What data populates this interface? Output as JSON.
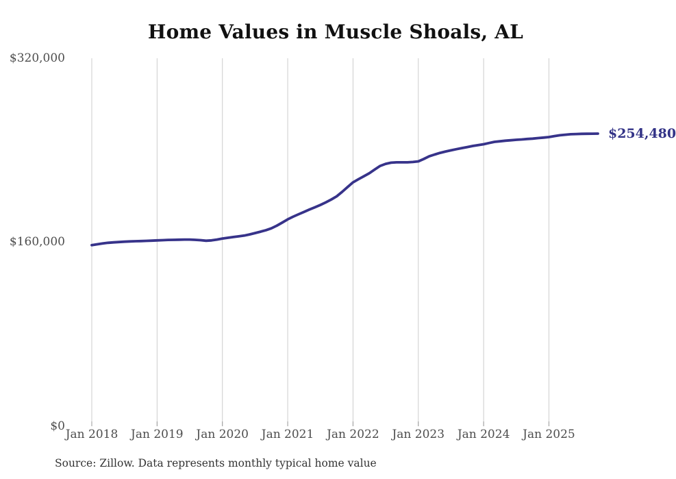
{
  "title": "Home Values in Muscle Shoals, AL",
  "source_note": "Source: Zillow. Data represents monthly typical home value",
  "end_label": "$254,480",
  "colors": {
    "line": "#37338a",
    "end_label": "#333387",
    "grid": "#cccccc",
    "tick": "#999999",
    "axis_text": "#4d4d4d",
    "title_text": "#111111",
    "source_text": "#333333",
    "background": "#ffffff"
  },
  "y_axis": {
    "ticks": [
      {
        "label": "$0",
        "value": 0
      },
      {
        "label": "$160,000",
        "value": 160000
      },
      {
        "label": "$320,000",
        "value": 320000
      }
    ]
  },
  "x_axis": {
    "ticks": [
      {
        "label": "Jan 2018",
        "month_index": 0
      },
      {
        "label": "Jan 2019",
        "month_index": 12
      },
      {
        "label": "Jan 2020",
        "month_index": 24
      },
      {
        "label": "Jan 2021",
        "month_index": 36
      },
      {
        "label": "Jan 2022",
        "month_index": 48
      },
      {
        "label": "Jan 2023",
        "month_index": 60
      },
      {
        "label": "Jan 2024",
        "month_index": 72
      },
      {
        "label": "Jan 2025",
        "month_index": 84
      }
    ]
  },
  "chart_data": {
    "type": "line",
    "title": "Home Values in Muscle Shoals, AL",
    "x_start": "2018-01",
    "x_end": "2025-10",
    "x_frequency": "monthly",
    "unit": "USD",
    "ylim": [
      0,
      320000
    ],
    "grid": "vertical-only",
    "legend": "none",
    "final_value": 254480,
    "final_value_label": "$254,480",
    "series": [
      {
        "name": "Typical home value",
        "values": [
          157500,
          158200,
          158900,
          159500,
          159900,
          160200,
          160500,
          160700,
          160900,
          161000,
          161200,
          161400,
          161600,
          161800,
          162000,
          162100,
          162200,
          162300,
          162300,
          162100,
          161800,
          161300,
          161600,
          162300,
          163200,
          163900,
          164500,
          165100,
          165800,
          166800,
          168000,
          169200,
          170500,
          172100,
          174400,
          177100,
          179900,
          182200,
          184300,
          186400,
          188400,
          190400,
          192400,
          194700,
          197100,
          199900,
          203800,
          208000,
          212100,
          214800,
          217400,
          220000,
          223300,
          226400,
          228200,
          229200,
          229500,
          229500,
          229500,
          229800,
          230300,
          232400,
          234700,
          236300,
          237700,
          238900,
          239900,
          240900,
          241900,
          242800,
          243700,
          244500,
          245200,
          246300,
          247300,
          247800,
          248300,
          248700,
          249100,
          249400,
          249800,
          250100,
          250600,
          251000,
          251500,
          252300,
          253000,
          253500,
          253900,
          254100,
          254250,
          254350,
          254420,
          254480
        ]
      }
    ]
  }
}
